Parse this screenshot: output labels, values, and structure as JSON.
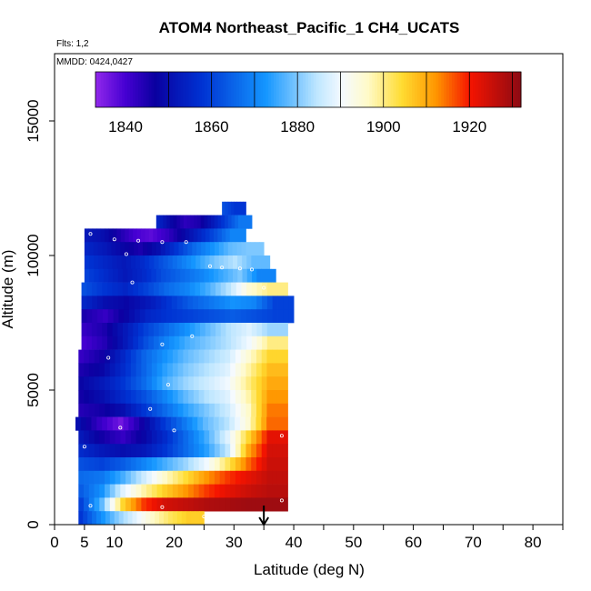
{
  "header": {
    "title": "ATOM4 Northeast_Pacific_1 CH4_UCATS",
    "flights": "Flts: 1,2",
    "dates": "MMDD: 0424,0427"
  },
  "chart_data": {
    "type": "heatmap",
    "title": "ATOM4 Northeast_Pacific_1 CH4_UCATS",
    "xlabel": "Latitude (deg N)",
    "ylabel": "Altitude (m)",
    "xlim": [
      0,
      85
    ],
    "ylim": [
      0,
      17500
    ],
    "x_ticks": [
      0,
      5,
      10,
      20,
      30,
      40,
      50,
      60,
      70,
      80
    ],
    "x_minor_ticks": [
      15,
      25,
      35,
      45,
      55,
      65,
      75,
      85
    ],
    "y_ticks": [
      0,
      5000,
      10000,
      15000
    ],
    "colorbar": {
      "range": [
        1833,
        1932
      ],
      "ticks": [
        1840,
        1860,
        1880,
        1900,
        1920
      ],
      "separators": [
        1850,
        1860,
        1870,
        1880,
        1890,
        1900,
        1910,
        1920,
        1930
      ]
    },
    "marker": {
      "latitude": 35
    },
    "bands": [
      {
        "alt": [
          11500,
          12000
        ],
        "lat": [
          28,
          32
        ],
        "values": [
          1862,
          1858
        ]
      },
      {
        "alt": [
          11000,
          11500
        ],
        "lat": [
          17,
          33
        ],
        "values": [
          1855,
          1848,
          1843,
          1845,
          1852,
          1860,
          1868
        ]
      },
      {
        "alt": [
          10500,
          11000
        ],
        "lat": [
          5,
          32
        ],
        "values": [
          1852,
          1850,
          1845,
          1840,
          1838,
          1842,
          1848,
          1855,
          1862,
          1870
        ]
      },
      {
        "alt": [
          10000,
          10500
        ],
        "lat": [
          5,
          35
        ],
        "values": [
          1855,
          1852,
          1848,
          1845,
          1850,
          1858,
          1866,
          1872,
          1878,
          1880
        ]
      },
      {
        "alt": [
          9500,
          10000
        ],
        "lat": [
          5,
          36
        ],
        "values": [
          1858,
          1855,
          1852,
          1856,
          1862,
          1868,
          1874,
          1880,
          1884,
          1878
        ]
      },
      {
        "alt": [
          9000,
          9500
        ],
        "lat": [
          5,
          37
        ],
        "values": [
          1860,
          1856,
          1852,
          1856,
          1862,
          1866,
          1870,
          1875,
          1880,
          1870
        ]
      },
      {
        "alt": [
          8500,
          9000
        ],
        "lat": [
          4.5,
          39
        ],
        "values": [
          1862,
          1858,
          1855,
          1860,
          1866,
          1870,
          1876,
          1884,
          1895,
          1900
        ]
      },
      {
        "alt": [
          8000,
          8500
        ],
        "lat": [
          4.5,
          40
        ],
        "values": [
          1855,
          1850,
          1848,
          1852,
          1858,
          1864,
          1868,
          1872,
          1870,
          1860
        ]
      },
      {
        "alt": [
          7500,
          8000
        ],
        "lat": [
          4.5,
          40
        ],
        "values": [
          1845,
          1842,
          1848,
          1855,
          1858,
          1860,
          1862,
          1864,
          1862,
          1860
        ]
      },
      {
        "alt": [
          7000,
          7500
        ],
        "lat": [
          4.5,
          39
        ],
        "values": [
          1842,
          1845,
          1852,
          1860,
          1866,
          1872,
          1878,
          1884,
          1888,
          1882
        ]
      },
      {
        "alt": [
          6500,
          7000
        ],
        "lat": [
          4.5,
          39
        ],
        "values": [
          1840,
          1844,
          1852,
          1862,
          1870,
          1876,
          1880,
          1884,
          1890,
          1900
        ]
      },
      {
        "alt": [
          6000,
          6500
        ],
        "lat": [
          4,
          39
        ],
        "values": [
          1842,
          1846,
          1855,
          1865,
          1872,
          1878,
          1882,
          1886,
          1895,
          1905
        ]
      },
      {
        "alt": [
          5500,
          6000
        ],
        "lat": [
          4,
          39
        ],
        "values": [
          1845,
          1848,
          1856,
          1865,
          1874,
          1880,
          1884,
          1888,
          1898,
          1908
        ]
      },
      {
        "alt": [
          5000,
          5500
        ],
        "lat": [
          4,
          39
        ],
        "values": [
          1848,
          1852,
          1858,
          1866,
          1876,
          1882,
          1886,
          1890,
          1900,
          1910
        ]
      },
      {
        "alt": [
          4500,
          5000
        ],
        "lat": [
          4,
          39
        ],
        "values": [
          1846,
          1850,
          1856,
          1862,
          1870,
          1878,
          1884,
          1888,
          1898,
          1912
        ]
      },
      {
        "alt": [
          4000,
          4500
        ],
        "lat": [
          4,
          39
        ],
        "values": [
          1844,
          1846,
          1850,
          1858,
          1866,
          1874,
          1880,
          1886,
          1896,
          1914
        ]
      },
      {
        "alt": [
          3500,
          4000
        ],
        "lat": [
          3.5,
          39
        ],
        "values": [
          1850,
          1842,
          1836,
          1846,
          1858,
          1868,
          1878,
          1884,
          1895,
          1915
        ]
      },
      {
        "alt": [
          3000,
          3500
        ],
        "lat": [
          4,
          39
        ],
        "values": [
          1852,
          1846,
          1842,
          1848,
          1856,
          1866,
          1876,
          1888,
          1905,
          1922
        ]
      },
      {
        "alt": [
          2500,
          3000
        ],
        "lat": [
          4,
          39
        ],
        "values": [
          1856,
          1852,
          1850,
          1852,
          1858,
          1866,
          1874,
          1885,
          1910,
          1924
        ]
      },
      {
        "alt": [
          2000,
          2500
        ],
        "lat": [
          4,
          39
        ],
        "values": [
          1862,
          1860,
          1864,
          1870,
          1876,
          1882,
          1890,
          1902,
          1915,
          1925
        ]
      },
      {
        "alt": [
          1500,
          2000
        ],
        "lat": [
          4,
          39
        ],
        "values": [
          1866,
          1868,
          1876,
          1886,
          1896,
          1904,
          1912,
          1918,
          1922,
          1926
        ]
      },
      {
        "alt": [
          1000,
          1500
        ],
        "lat": [
          4,
          39
        ],
        "values": [
          1864,
          1872,
          1888,
          1898,
          1906,
          1912,
          1918,
          1922,
          1925,
          1927
        ]
      },
      {
        "alt": [
          500,
          1000
        ],
        "lat": [
          4,
          39
        ],
        "values": [
          1860,
          1878,
          1905,
          1918,
          1924,
          1926,
          1928,
          1929,
          1930,
          1930
        ]
      },
      {
        "alt": [
          0,
          500
        ],
        "lat": [
          4,
          25
        ],
        "values": [
          1858,
          1870,
          1880,
          1888,
          1896,
          1902,
          1906
        ]
      }
    ],
    "samples": [
      [
        30.5,
        12200
      ],
      [
        6,
        10800
      ],
      [
        10,
        10600
      ],
      [
        14,
        10550
      ],
      [
        18,
        10500
      ],
      [
        22,
        10500
      ],
      [
        12,
        10050
      ],
      [
        26,
        9600
      ],
      [
        28,
        9550
      ],
      [
        31,
        9520
      ],
      [
        33,
        9480
      ],
      [
        13,
        9000
      ],
      [
        35,
        8800
      ],
      [
        23,
        7000
      ],
      [
        18,
        6700
      ],
      [
        9,
        6200
      ],
      [
        19,
        5200
      ],
      [
        16,
        4300
      ],
      [
        11,
        3600
      ],
      [
        20,
        3500
      ],
      [
        38,
        3300
      ],
      [
        5,
        2900
      ],
      [
        6,
        700
      ],
      [
        18,
        650
      ],
      [
        38,
        900
      ],
      [
        25,
        300
      ]
    ]
  }
}
